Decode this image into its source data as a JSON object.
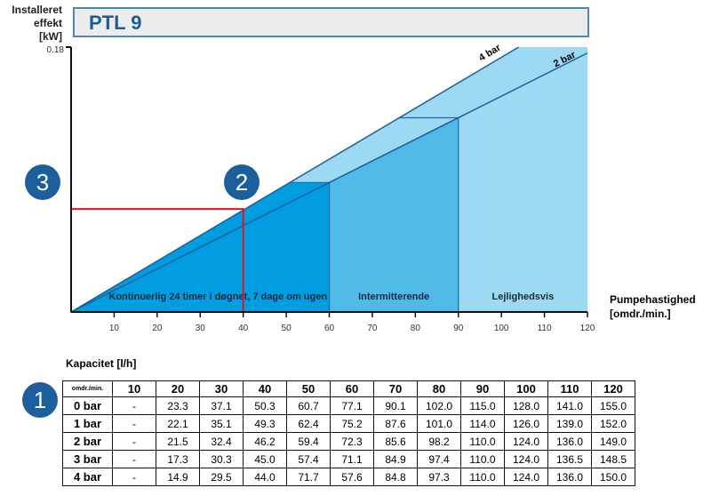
{
  "title": "PTL 9",
  "circles": [
    "1",
    "2",
    "3"
  ],
  "chart_data": {
    "type": "area",
    "title": "PTL 9",
    "ylabel": "Installeret effekt [kW]",
    "xlabel": "Pumpehastighed [omdr./min.]",
    "ylabel_lines": [
      "Installeret",
      "effekt",
      "[kW]"
    ],
    "xlabel_lines": [
      "Pumpehastighed",
      "[omdr./min.]"
    ],
    "ylim": [
      0,
      0.18
    ],
    "ytick": "0.18",
    "xlim": [
      0,
      120
    ],
    "xticks": [
      "10",
      "20",
      "30",
      "40",
      "50",
      "60",
      "70",
      "80",
      "90",
      "100",
      "110",
      "120"
    ],
    "series": [
      {
        "name": "4 bar",
        "points": [
          [
            0,
            0
          ],
          [
            104,
            0.18
          ]
        ]
      },
      {
        "name": "2 bar",
        "points": [
          [
            0,
            0
          ],
          [
            120,
            0.176
          ]
        ]
      }
    ],
    "zones": [
      {
        "label": "Kontinuerlig 24 timer i døgnet, 7 dage om ugen",
        "from": 0,
        "to": 60
      },
      {
        "label": "Intermitterende",
        "from": 60,
        "to": 90
      },
      {
        "label": "Lejlighedsvis",
        "from": 90,
        "to": 120
      }
    ],
    "marker": {
      "x": 40,
      "y": 0.07
    }
  },
  "table": {
    "title": "Kapacitet [l/h]",
    "corner": "omdr./min.",
    "headers": [
      "10",
      "20",
      "30",
      "40",
      "50",
      "60",
      "70",
      "80",
      "90",
      "100",
      "110",
      "120"
    ],
    "rows": [
      {
        "label": "0 bar",
        "values": [
          "-",
          "23.3",
          "37.1",
          "50.3",
          "60.7",
          "77.1",
          "90.1",
          "102.0",
          "115.0",
          "128.0",
          "141.0",
          "155.0"
        ]
      },
      {
        "label": "1 bar",
        "values": [
          "-",
          "22.1",
          "35.1",
          "49.3",
          "62.4",
          "75.2",
          "87.6",
          "101.0",
          "114.0",
          "126.0",
          "139.0",
          "152.0"
        ]
      },
      {
        "label": "2 bar",
        "values": [
          "-",
          "21.5",
          "32.4",
          "46.2",
          "59.4",
          "72.3",
          "85.6",
          "98.2",
          "110.0",
          "124.0",
          "136.0",
          "149.0"
        ]
      },
      {
        "label": "3 bar",
        "values": [
          "-",
          "17.3",
          "30.3",
          "45.0",
          "57.4",
          "71.1",
          "84.9",
          "97.4",
          "110.0",
          "124.0",
          "136.5",
          "148.5"
        ]
      },
      {
        "label": "4 bar",
        "values": [
          "-",
          "14.9",
          "29.5",
          "44.0",
          "71.7",
          "57.6",
          "84.8",
          "97.3",
          "110.0",
          "124.0",
          "136.0",
          "150.0"
        ]
      }
    ]
  }
}
